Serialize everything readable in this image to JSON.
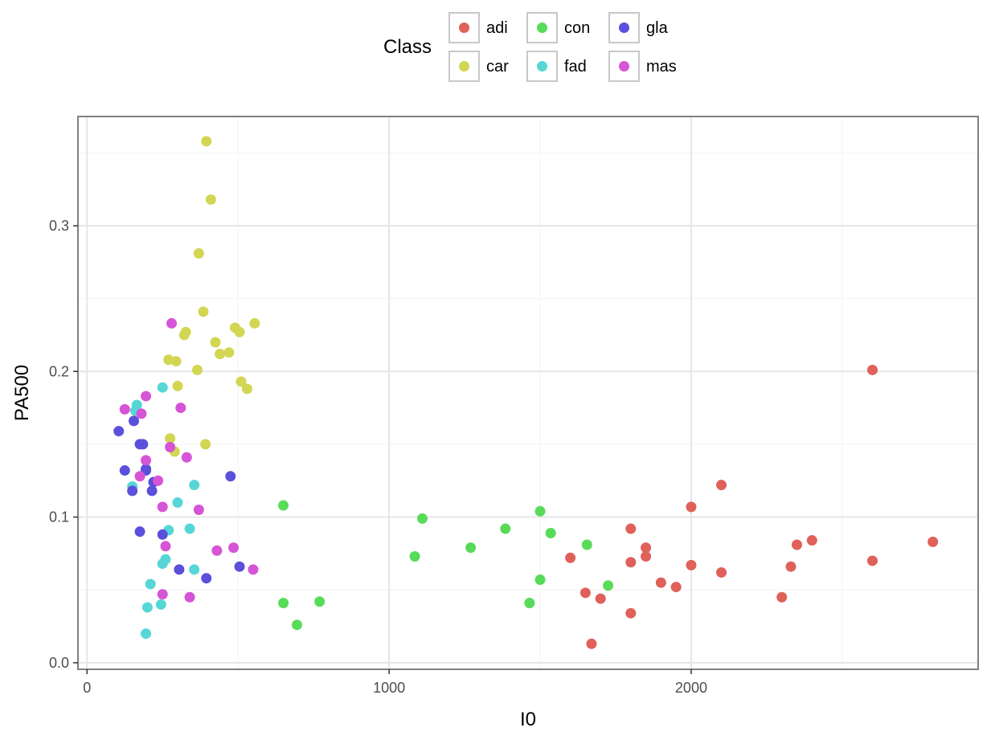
{
  "chart_data": {
    "type": "scatter",
    "xlabel": "I0",
    "ylabel": "PA500",
    "xlim": [
      -30,
      2950
    ],
    "ylim": [
      -0.0045,
      0.375
    ],
    "x_ticks": [
      0,
      1000,
      2000
    ],
    "y_ticks": [
      0.0,
      0.1,
      0.2,
      0.3
    ],
    "x_tick_labels": [
      "0",
      "1000",
      "2000"
    ],
    "y_tick_labels": [
      "0.0",
      "0.1",
      "0.2",
      "0.3"
    ],
    "grid": true,
    "legend": {
      "title": "Class",
      "position": "top"
    },
    "series": [
      {
        "name": "adi",
        "color": "#E0605A",
        "points": [
          [
            2600,
            0.201
          ],
          [
            2100,
            0.122
          ],
          [
            2000,
            0.107
          ],
          [
            1800,
            0.092
          ],
          [
            1850,
            0.079
          ],
          [
            1850,
            0.073
          ],
          [
            1600,
            0.072
          ],
          [
            1800,
            0.069
          ],
          [
            2000,
            0.067
          ],
          [
            2100,
            0.062
          ],
          [
            2400,
            0.084
          ],
          [
            2350,
            0.081
          ],
          [
            2800,
            0.083
          ],
          [
            2600,
            0.07
          ],
          [
            2330,
            0.066
          ],
          [
            1900,
            0.055
          ],
          [
            1950,
            0.052
          ],
          [
            1650,
            0.048
          ],
          [
            1700,
            0.044
          ],
          [
            2300,
            0.045
          ],
          [
            1800,
            0.034
          ],
          [
            1670,
            0.013
          ]
        ]
      },
      {
        "name": "car",
        "color": "#D2D653",
        "points": [
          [
            395,
            0.358
          ],
          [
            410,
            0.318
          ],
          [
            370,
            0.281
          ],
          [
            385,
            0.241
          ],
          [
            327,
            0.227
          ],
          [
            322,
            0.225
          ],
          [
            490,
            0.23
          ],
          [
            505,
            0.227
          ],
          [
            555,
            0.233
          ],
          [
            425,
            0.22
          ],
          [
            440,
            0.212
          ],
          [
            470,
            0.213
          ],
          [
            270,
            0.208
          ],
          [
            295,
            0.207
          ],
          [
            365,
            0.201
          ],
          [
            510,
            0.193
          ],
          [
            530,
            0.188
          ],
          [
            300,
            0.19
          ],
          [
            275,
            0.154
          ],
          [
            290,
            0.145
          ],
          [
            392,
            0.15
          ]
        ]
      },
      {
        "name": "con",
        "color": "#58DB58",
        "points": [
          [
            650,
            0.108
          ],
          [
            1110,
            0.099
          ],
          [
            1500,
            0.104
          ],
          [
            1385,
            0.092
          ],
          [
            1535,
            0.089
          ],
          [
            1655,
            0.081
          ],
          [
            1270,
            0.079
          ],
          [
            1085,
            0.073
          ],
          [
            1500,
            0.057
          ],
          [
            1725,
            0.053
          ],
          [
            650,
            0.041
          ],
          [
            770,
            0.042
          ],
          [
            1465,
            0.041
          ],
          [
            695,
            0.026
          ]
        ]
      },
      {
        "name": "fad",
        "color": "#57D6D6",
        "points": [
          [
            250,
            0.189
          ],
          [
            165,
            0.177
          ],
          [
            160,
            0.173
          ],
          [
            150,
            0.121
          ],
          [
            355,
            0.122
          ],
          [
            300,
            0.11
          ],
          [
            270,
            0.091
          ],
          [
            340,
            0.092
          ],
          [
            260,
            0.071
          ],
          [
            250,
            0.068
          ],
          [
            355,
            0.064
          ],
          [
            210,
            0.054
          ],
          [
            200,
            0.038
          ],
          [
            245,
            0.04
          ],
          [
            195,
            0.02
          ]
        ]
      },
      {
        "name": "gla",
        "color": "#5B50DB",
        "points": [
          [
            105,
            0.159
          ],
          [
            155,
            0.166
          ],
          [
            175,
            0.15
          ],
          [
            185,
            0.15
          ],
          [
            125,
            0.132
          ],
          [
            195,
            0.133
          ],
          [
            195,
            0.132
          ],
          [
            220,
            0.124
          ],
          [
            150,
            0.118
          ],
          [
            215,
            0.118
          ],
          [
            475,
            0.128
          ],
          [
            175,
            0.09
          ],
          [
            250,
            0.088
          ],
          [
            305,
            0.064
          ],
          [
            395,
            0.058
          ],
          [
            505,
            0.066
          ]
        ]
      },
      {
        "name": "mas",
        "color": "#D654D6",
        "points": [
          [
            280,
            0.233
          ],
          [
            195,
            0.183
          ],
          [
            125,
            0.174
          ],
          [
            180,
            0.171
          ],
          [
            310,
            0.175
          ],
          [
            275,
            0.148
          ],
          [
            330,
            0.141
          ],
          [
            195,
            0.139
          ],
          [
            175,
            0.128
          ],
          [
            235,
            0.125
          ],
          [
            250,
            0.107
          ],
          [
            370,
            0.105
          ],
          [
            260,
            0.08
          ],
          [
            430,
            0.077
          ],
          [
            485,
            0.079
          ],
          [
            550,
            0.064
          ],
          [
            250,
            0.047
          ],
          [
            340,
            0.045
          ]
        ]
      }
    ]
  }
}
